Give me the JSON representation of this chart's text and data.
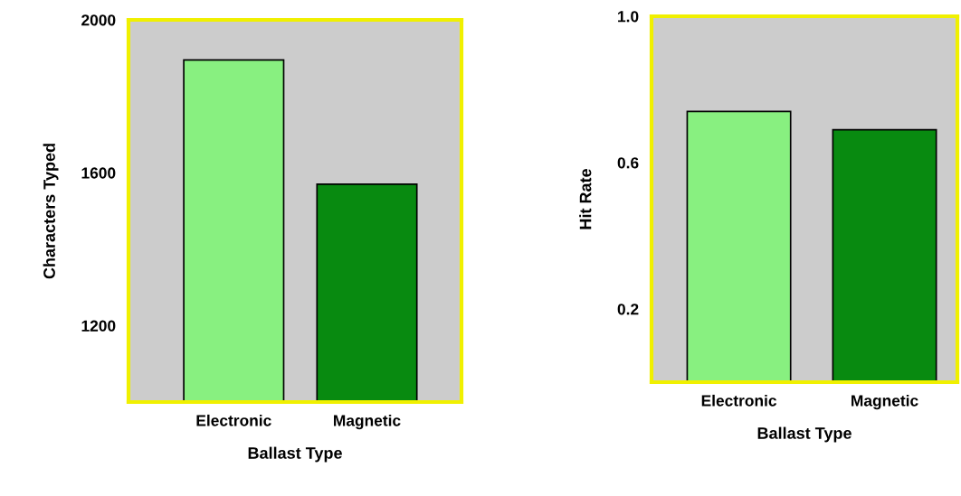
{
  "chart_data": [
    {
      "type": "bar",
      "categories": [
        "Electronic",
        "Magnetic"
      ],
      "values": [
        1895,
        1570
      ],
      "colors": [
        "#88f080",
        "#088a10"
      ],
      "xlabel": "Ballast Type",
      "ylabel": "Characters Typed",
      "ylim": [
        1000,
        2000
      ],
      "yticks": [
        1200,
        1600,
        2000
      ],
      "grid": false
    },
    {
      "type": "bar",
      "categories": [
        "Electronic",
        "Magnetic"
      ],
      "values": [
        0.74,
        0.69
      ],
      "colors": [
        "#88f080",
        "#088a10"
      ],
      "xlabel": "Ballast Type",
      "ylabel": "Hit Rate",
      "ylim": [
        0,
        1.0
      ],
      "yticks": [
        0.2,
        0.6,
        {
          "value": 1.0,
          "label": "1.0"
        }
      ],
      "grid": false
    }
  ]
}
